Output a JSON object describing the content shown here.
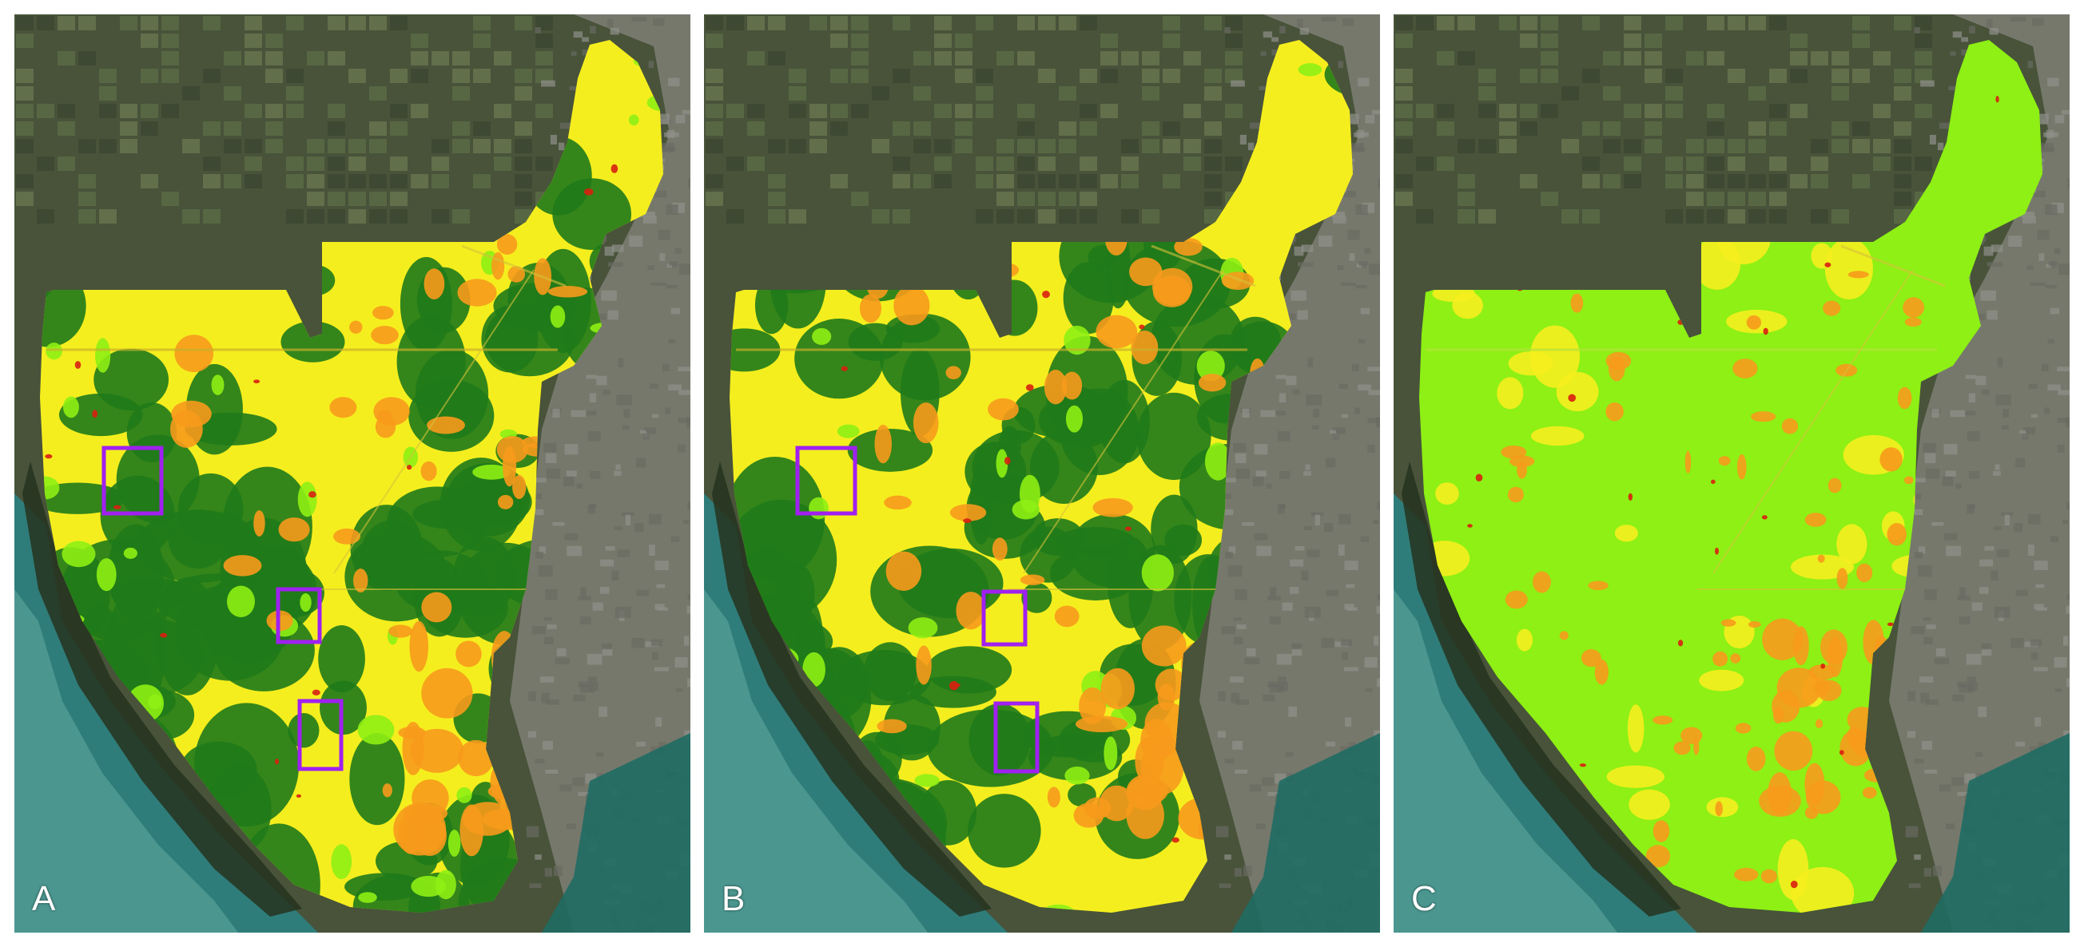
{
  "panels": [
    {
      "letter": "A",
      "style": "three_class",
      "highlights": 3
    },
    {
      "letter": "B",
      "style": "three_class",
      "highlights": 3
    },
    {
      "letter": "C",
      "style": "lime_dominant",
      "highlights": 0
    }
  ],
  "colors": {
    "dark_green": "#1f7a1a",
    "lime": "#8ef014",
    "yellow": "#f5ee1e",
    "orange": "#f79a1c",
    "red": "#d81f0f",
    "highlight_box": "#a020f0",
    "satellite_land": "#48533a",
    "satellite_farm": "#5a6b45",
    "satellite_urban": "#7b7c72",
    "water": "#2f7d7a",
    "water_light": "#5fa89e"
  }
}
